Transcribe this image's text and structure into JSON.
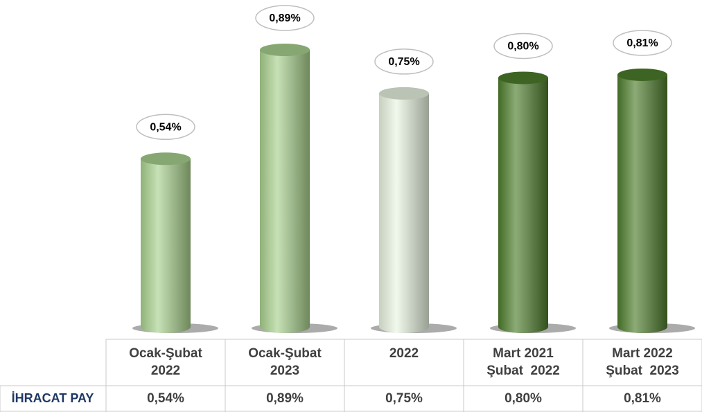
{
  "chart_data": {
    "type": "bar",
    "categories": [
      "Ocak-Şubat\n2022",
      "Ocak-Şubat\n2023",
      "2022",
      "Mart 2021\nŞubat  2022",
      "Mart 2022\nŞubat  2023"
    ],
    "values": [
      0.54,
      0.89,
      0.75,
      0.8,
      0.81
    ],
    "value_labels": [
      "0,54%",
      "0,89%",
      "0,75%",
      "0,80%",
      "0,81%"
    ],
    "colors": [
      "#a9d18e",
      "#a9d18e",
      "#eaf4e2",
      "#4e7d2c",
      "#4e7d2c"
    ],
    "table_row_header": "İHRACAT PAY"
  }
}
